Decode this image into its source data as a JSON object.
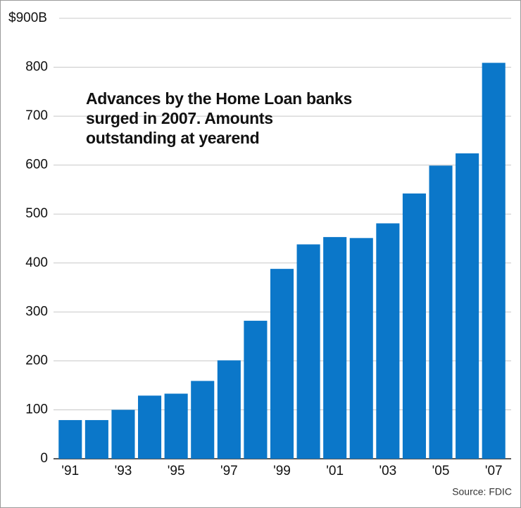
{
  "chart_data": {
    "type": "bar",
    "title": "Advances by the Home Loan banks surged in 2007. Amounts outstanding at yearend",
    "categories": [
      "'91",
      null,
      "'93",
      null,
      "'95",
      null,
      "'97",
      null,
      "'99",
      null,
      "'01",
      null,
      "'03",
      null,
      "'05",
      null,
      "'07"
    ],
    "values": [
      79,
      79,
      100,
      129,
      133,
      159,
      201,
      282,
      388,
      438,
      453,
      451,
      481,
      542,
      599,
      624,
      809
    ],
    "color": "#0b77c9",
    "ylim": [
      0,
      900
    ],
    "yticks": [
      0,
      100,
      200,
      300,
      400,
      500,
      600,
      700,
      800,
      {
        "value": 900,
        "label": "$900B"
      }
    ],
    "grid": true,
    "source": "Source: FDIC"
  }
}
